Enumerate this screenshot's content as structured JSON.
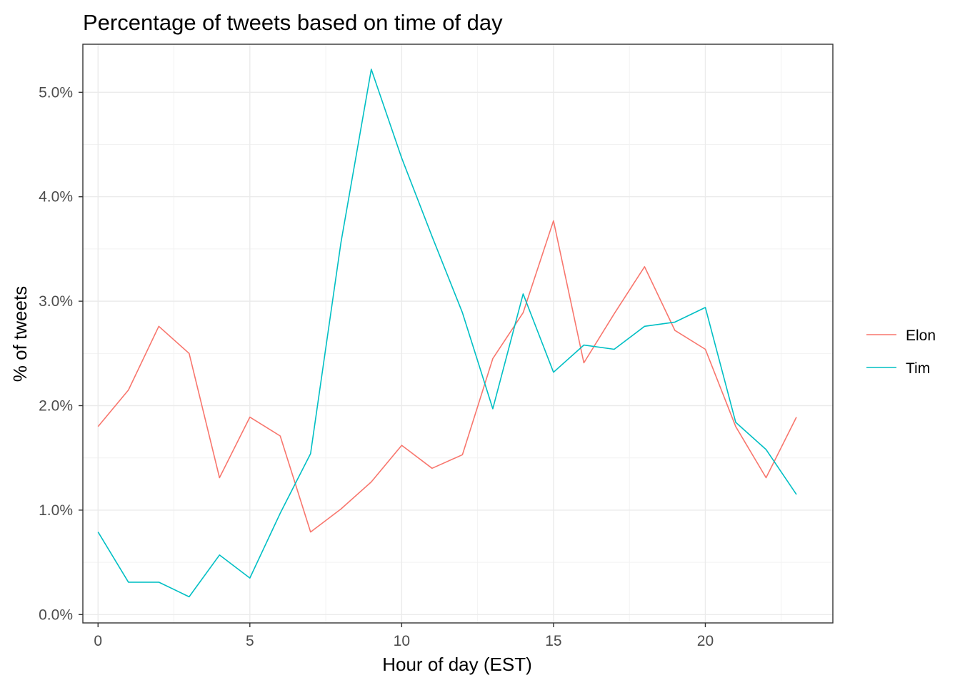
{
  "chart_data": {
    "type": "line",
    "title": "Percentage of tweets based on time of day",
    "xlabel": "Hour of day (EST)",
    "ylabel": "% of tweets",
    "x": [
      0,
      1,
      2,
      3,
      4,
      5,
      6,
      7,
      8,
      9,
      10,
      11,
      12,
      13,
      14,
      15,
      16,
      17,
      18,
      19,
      20,
      21,
      22,
      23
    ],
    "xlim": [
      -0.5,
      24.2
    ],
    "ylim": [
      -0.08,
      5.46
    ],
    "x_ticks": [
      0,
      5,
      10,
      15,
      20
    ],
    "x_tick_labels": [
      "0",
      "5",
      "10",
      "15",
      "20"
    ],
    "y_ticks": [
      0,
      1,
      2,
      3,
      4,
      5
    ],
    "y_tick_labels": [
      "0.0%",
      "1.0%",
      "2.0%",
      "3.0%",
      "4.0%",
      "5.0%"
    ],
    "grid": true,
    "legend_position": "right",
    "series": [
      {
        "name": "Elon",
        "color": "#F8766D",
        "values": [
          1.8,
          2.15,
          2.76,
          2.5,
          1.31,
          1.89,
          1.71,
          0.79,
          1.01,
          1.27,
          1.62,
          1.4,
          1.53,
          2.45,
          2.89,
          3.77,
          2.41,
          2.88,
          3.33,
          2.72,
          2.54,
          1.8,
          1.31,
          1.89
        ]
      },
      {
        "name": "Tim",
        "color": "#00BFC4",
        "values": [
          0.79,
          0.31,
          0.31,
          0.17,
          0.57,
          0.35,
          0.97,
          1.54,
          3.56,
          5.22,
          4.37,
          3.62,
          2.89,
          1.97,
          3.07,
          2.32,
          2.58,
          2.54,
          2.76,
          2.8,
          2.94,
          1.84,
          1.58,
          1.15
        ]
      }
    ]
  }
}
